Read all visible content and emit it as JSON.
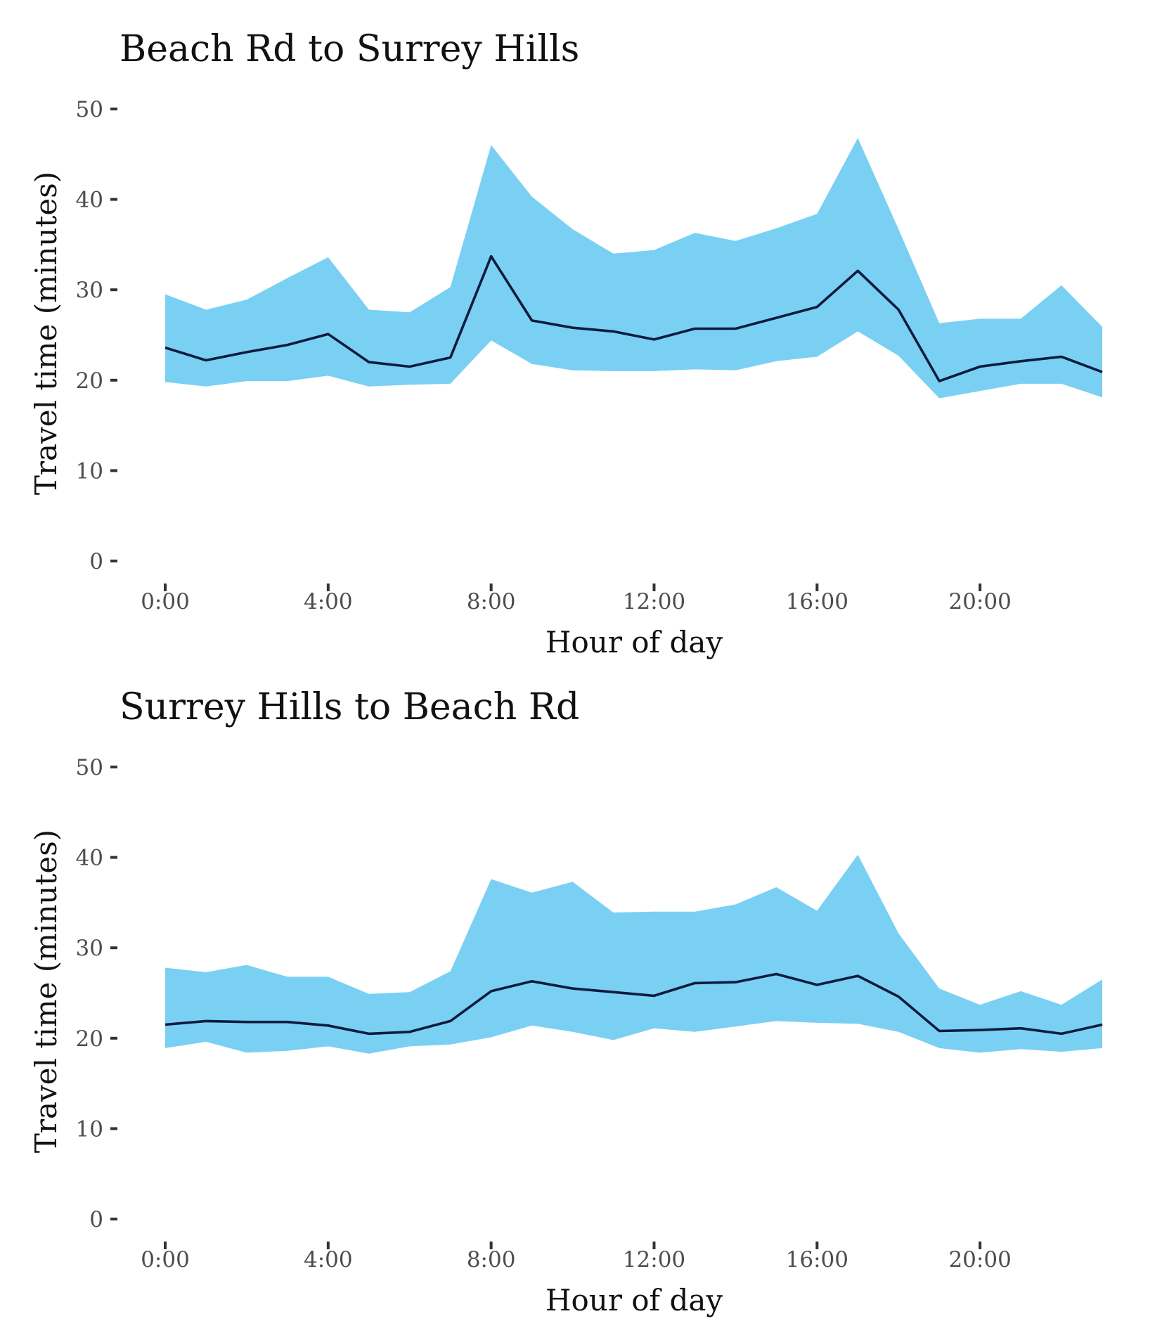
{
  "colors": {
    "ribbon": "#7ad0f3",
    "line": "#0d1b3e",
    "axis_text": "#4d4d4d",
    "title_text": "#111111"
  },
  "chart_data": [
    {
      "type": "area",
      "title": "Beach Rd to Surrey Hills",
      "xlabel": "Hour of day",
      "ylabel": "Travel time (minutes)",
      "xlim": [
        0,
        23
      ],
      "ylim": [
        0,
        50
      ],
      "x_ticks": [
        0,
        4,
        8,
        12,
        16,
        20
      ],
      "x_tick_labels": [
        "0:00",
        "4:00",
        "8:00",
        "12:00",
        "16:00",
        "20:00"
      ],
      "y_ticks": [
        0,
        10,
        20,
        30,
        40,
        50
      ],
      "y_tick_labels": [
        "0",
        "10",
        "20",
        "30",
        "40",
        "50"
      ],
      "grid": false,
      "legend": "none",
      "x": [
        0,
        1,
        2,
        3,
        4,
        5,
        6,
        7,
        8,
        9,
        10,
        11,
        12,
        13,
        14,
        15,
        16,
        17,
        18,
        19,
        20,
        21,
        22,
        23
      ],
      "series": [
        {
          "kind": "range",
          "lower": [
            19.8,
            19.3,
            19.9,
            19.9,
            20.5,
            19.3,
            19.5,
            19.6,
            24.4,
            21.8,
            21.1,
            21.0,
            21.0,
            21.2,
            21.1,
            22.1,
            22.6,
            25.4,
            22.7,
            18.0,
            18.8,
            19.6,
            19.6,
            18.1
          ],
          "upper": [
            29.5,
            27.8,
            28.9,
            31.3,
            33.6,
            27.8,
            27.5,
            30.3,
            46.0,
            40.3,
            36.7,
            34.0,
            34.4,
            36.3,
            35.4,
            36.8,
            38.4,
            46.8,
            36.7,
            26.3,
            26.8,
            26.8,
            30.5,
            25.9
          ]
        },
        {
          "kind": "line",
          "values": [
            23.6,
            22.2,
            23.1,
            23.9,
            25.1,
            22.0,
            21.5,
            22.5,
            33.7,
            26.6,
            25.8,
            25.4,
            24.5,
            25.7,
            25.7,
            26.9,
            28.1,
            32.1,
            27.8,
            19.9,
            21.5,
            22.1,
            22.6,
            20.9
          ]
        }
      ]
    },
    {
      "type": "area",
      "title": "Surrey Hills to Beach Rd",
      "xlabel": "Hour of day",
      "ylabel": "Travel time (minutes)",
      "xlim": [
        0,
        23
      ],
      "ylim": [
        0,
        50
      ],
      "x_ticks": [
        0,
        4,
        8,
        12,
        16,
        20
      ],
      "x_tick_labels": [
        "0:00",
        "4:00",
        "8:00",
        "12:00",
        "16:00",
        "20:00"
      ],
      "y_ticks": [
        0,
        10,
        20,
        30,
        40,
        50
      ],
      "y_tick_labels": [
        "0",
        "10",
        "20",
        "30",
        "40",
        "50"
      ],
      "grid": false,
      "legend": "none",
      "x": [
        0,
        1,
        2,
        3,
        4,
        5,
        6,
        7,
        8,
        9,
        10,
        11,
        12,
        13,
        14,
        15,
        16,
        17,
        18,
        19,
        20,
        21,
        22,
        23
      ],
      "series": [
        {
          "kind": "range",
          "lower": [
            18.9,
            19.6,
            18.4,
            18.6,
            19.1,
            18.3,
            19.1,
            19.3,
            20.1,
            21.4,
            20.7,
            19.8,
            21.1,
            20.7,
            21.3,
            21.9,
            21.7,
            21.6,
            20.7,
            18.9,
            18.4,
            18.8,
            18.5,
            18.9
          ],
          "upper": [
            27.8,
            27.3,
            28.1,
            26.8,
            26.8,
            24.9,
            25.1,
            27.4,
            37.6,
            36.1,
            37.3,
            33.9,
            34.0,
            34.0,
            34.8,
            36.7,
            34.1,
            40.3,
            31.6,
            25.5,
            23.7,
            25.2,
            23.7,
            26.5
          ]
        },
        {
          "kind": "line",
          "values": [
            21.5,
            21.9,
            21.8,
            21.8,
            21.4,
            20.5,
            20.7,
            21.9,
            25.2,
            26.3,
            25.5,
            25.1,
            24.7,
            26.1,
            26.2,
            27.1,
            25.9,
            26.9,
            24.6,
            20.8,
            20.9,
            21.1,
            20.5,
            21.5
          ]
        }
      ]
    }
  ]
}
